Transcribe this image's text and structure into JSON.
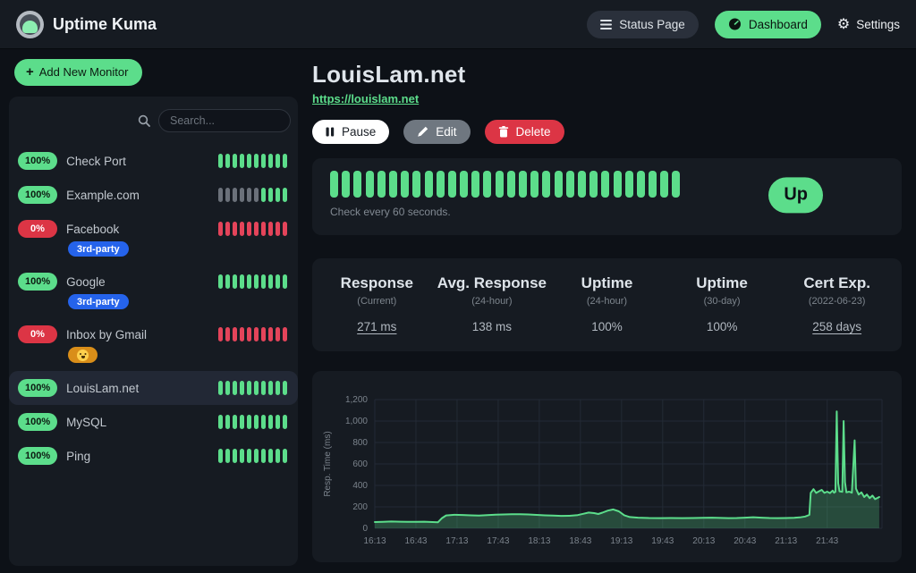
{
  "navbar": {
    "brand": "Uptime Kuma",
    "status_page_label": "Status Page",
    "dashboard_label": "Dashboard",
    "settings_label": "Settings",
    "settings_icon": "⚙"
  },
  "sidebar": {
    "add_monitor_label": "Add New Monitor",
    "search_placeholder": "Search...",
    "monitors": [
      {
        "uptime": "100%",
        "status": "up",
        "name": "Check Port",
        "selected": false,
        "tags": [],
        "beats": [
          "up",
          "up",
          "up",
          "up",
          "up",
          "up",
          "up",
          "up",
          "up",
          "up"
        ]
      },
      {
        "uptime": "100%",
        "status": "up",
        "name": "Example.com",
        "selected": false,
        "tags": [],
        "beats": [
          "empty",
          "empty",
          "empty",
          "empty",
          "empty",
          "empty",
          "up",
          "up",
          "up",
          "up"
        ]
      },
      {
        "uptime": "0%",
        "status": "down",
        "name": "Facebook",
        "selected": false,
        "tags": [
          {
            "label": "3rd-party",
            "color": "#2563eb"
          }
        ],
        "beats": [
          "down",
          "down",
          "down",
          "down",
          "down",
          "down",
          "down",
          "down",
          "down",
          "down"
        ]
      },
      {
        "uptime": "100%",
        "status": "up",
        "name": "Google",
        "selected": false,
        "tags": [
          {
            "label": "3rd-party",
            "color": "#2563eb"
          }
        ],
        "beats": [
          "up",
          "up",
          "up",
          "up",
          "up",
          "up",
          "up",
          "up",
          "up",
          "up"
        ]
      },
      {
        "uptime": "0%",
        "status": "down",
        "name": "Inbox by Gmail",
        "selected": false,
        "tags": [
          {
            "label": "😭",
            "emoji_name": "loudly-crying-face",
            "color": "#d98e19"
          }
        ],
        "beats": [
          "down",
          "down",
          "down",
          "down",
          "down",
          "down",
          "down",
          "down",
          "down",
          "down"
        ]
      },
      {
        "uptime": "100%",
        "status": "up",
        "name": "LouisLam.net",
        "selected": true,
        "tags": [],
        "beats": [
          "up",
          "up",
          "up",
          "up",
          "up",
          "up",
          "up",
          "up",
          "up",
          "up"
        ]
      },
      {
        "uptime": "100%",
        "status": "up",
        "name": "MySQL",
        "selected": false,
        "tags": [],
        "beats": [
          "up",
          "up",
          "up",
          "up",
          "up",
          "up",
          "up",
          "up",
          "up",
          "up"
        ]
      },
      {
        "uptime": "100%",
        "status": "up",
        "name": "Ping",
        "selected": false,
        "tags": [],
        "beats": [
          "up",
          "up",
          "up",
          "up",
          "up",
          "up",
          "up",
          "up",
          "up",
          "up"
        ]
      }
    ]
  },
  "monitor": {
    "title": "LouisLam.net",
    "url": "https://louislam.net",
    "pause_label": "Pause",
    "edit_label": "Edit",
    "delete_label": "Delete",
    "check_interval_text": "Check every 60 seconds.",
    "status_label": "Up",
    "beats": [
      "up",
      "up",
      "up",
      "up",
      "up",
      "up",
      "up",
      "up",
      "up",
      "up",
      "up",
      "up",
      "up",
      "up",
      "up",
      "up",
      "up",
      "up",
      "up",
      "up",
      "up",
      "up",
      "up",
      "up",
      "up",
      "up",
      "up",
      "up",
      "up",
      "up"
    ]
  },
  "stats": [
    {
      "title": "Response",
      "subtitle": "(Current)",
      "value": "271 ms",
      "underline": true
    },
    {
      "title": "Avg. Response",
      "subtitle": "(24-hour)",
      "value": "138 ms",
      "underline": false
    },
    {
      "title": "Uptime",
      "subtitle": "(24-hour)",
      "value": "100%",
      "underline": false
    },
    {
      "title": "Uptime",
      "subtitle": "(30-day)",
      "value": "100%",
      "underline": false
    },
    {
      "title": "Cert Exp.",
      "subtitle": "(2022-06-23)",
      "value": "258 days",
      "underline": true
    }
  ],
  "chart_data": {
    "type": "area",
    "title": "",
    "xlabel": "",
    "ylabel": "Resp. Time (ms)",
    "ylim": [
      0,
      1200
    ],
    "yticks": [
      {
        "value": 0,
        "label": "0"
      },
      {
        "value": 200,
        "label": "200"
      },
      {
        "value": 400,
        "label": "400"
      },
      {
        "value": 600,
        "label": "600"
      },
      {
        "value": 800,
        "label": "800"
      },
      {
        "value": 1000,
        "label": "1,000"
      },
      {
        "value": 1200,
        "label": "1,200"
      }
    ],
    "x_range": [
      0,
      370
    ],
    "xticks": [
      {
        "t": 0,
        "label": "16:13"
      },
      {
        "t": 30,
        "label": "16:43"
      },
      {
        "t": 60,
        "label": "17:13"
      },
      {
        "t": 90,
        "label": "17:43"
      },
      {
        "t": 120,
        "label": "18:13"
      },
      {
        "t": 150,
        "label": "18:43"
      },
      {
        "t": 180,
        "label": "19:13"
      },
      {
        "t": 210,
        "label": "19:43"
      },
      {
        "t": 240,
        "label": "20:13"
      },
      {
        "t": 270,
        "label": "20:43"
      },
      {
        "t": 300,
        "label": "21:13"
      },
      {
        "t": 330,
        "label": "21:43"
      }
    ],
    "grid": true,
    "legend_position": "none",
    "series": [
      {
        "name": "Resp. Time (ms)",
        "points": [
          [
            0,
            58
          ],
          [
            6,
            60
          ],
          [
            12,
            63
          ],
          [
            18,
            62
          ],
          [
            24,
            60
          ],
          [
            30,
            61
          ],
          [
            36,
            62
          ],
          [
            42,
            58
          ],
          [
            46,
            56
          ],
          [
            49,
            95
          ],
          [
            52,
            120
          ],
          [
            58,
            126
          ],
          [
            64,
            124
          ],
          [
            70,
            121
          ],
          [
            76,
            119
          ],
          [
            82,
            123
          ],
          [
            88,
            127
          ],
          [
            94,
            129
          ],
          [
            100,
            131
          ],
          [
            106,
            132
          ],
          [
            112,
            129
          ],
          [
            118,
            125
          ],
          [
            124,
            121
          ],
          [
            130,
            118
          ],
          [
            136,
            116
          ],
          [
            142,
            117
          ],
          [
            148,
            123
          ],
          [
            152,
            135
          ],
          [
            156,
            147
          ],
          [
            160,
            142
          ],
          [
            163,
            133
          ],
          [
            166,
            146
          ],
          [
            170,
            165
          ],
          [
            174,
            176
          ],
          [
            178,
            158
          ],
          [
            182,
            122
          ],
          [
            186,
            105
          ],
          [
            192,
            99
          ],
          [
            200,
            96
          ],
          [
            208,
            95
          ],
          [
            216,
            96
          ],
          [
            224,
            95
          ],
          [
            232,
            96
          ],
          [
            240,
            98
          ],
          [
            246,
            99
          ],
          [
            252,
            97
          ],
          [
            258,
            95
          ],
          [
            264,
            96
          ],
          [
            270,
            99
          ],
          [
            276,
            103
          ],
          [
            282,
            99
          ],
          [
            288,
            96
          ],
          [
            294,
            95
          ],
          [
            300,
            96
          ],
          [
            306,
            98
          ],
          [
            310,
            102
          ],
          [
            314,
            110
          ],
          [
            317,
            125
          ],
          [
            318,
            330
          ],
          [
            320,
            365
          ],
          [
            322,
            330
          ],
          [
            324,
            345
          ],
          [
            326,
            358
          ],
          [
            328,
            330
          ],
          [
            330,
            342
          ],
          [
            332,
            328
          ],
          [
            334,
            352
          ],
          [
            335,
            332
          ],
          [
            336,
            340
          ],
          [
            337,
            1090
          ],
          [
            338,
            420
          ],
          [
            339,
            345
          ],
          [
            341,
            340
          ],
          [
            342,
            1000
          ],
          [
            343,
            430
          ],
          [
            344,
            335
          ],
          [
            346,
            342
          ],
          [
            348,
            332
          ],
          [
            350,
            820
          ],
          [
            351,
            370
          ],
          [
            353,
            315
          ],
          [
            355,
            335
          ],
          [
            357,
            292
          ],
          [
            359,
            315
          ],
          [
            361,
            282
          ],
          [
            363,
            305
          ],
          [
            365,
            272
          ],
          [
            368,
            292
          ]
        ]
      }
    ]
  },
  "colors": {
    "accent_green": "#5cdd8b",
    "danger_red": "#dc3545",
    "panel_bg": "#161b22",
    "page_bg": "#0d1117",
    "chart_line": "#5cdd8b",
    "chart_fill": "rgba(92,221,139,0.25)",
    "chart_grid": "#232a35",
    "chart_tick_text": "#7b838c",
    "beat_up": "#5cdd8b",
    "beat_down": "#e4445a",
    "beat_empty": "#6b717a"
  }
}
